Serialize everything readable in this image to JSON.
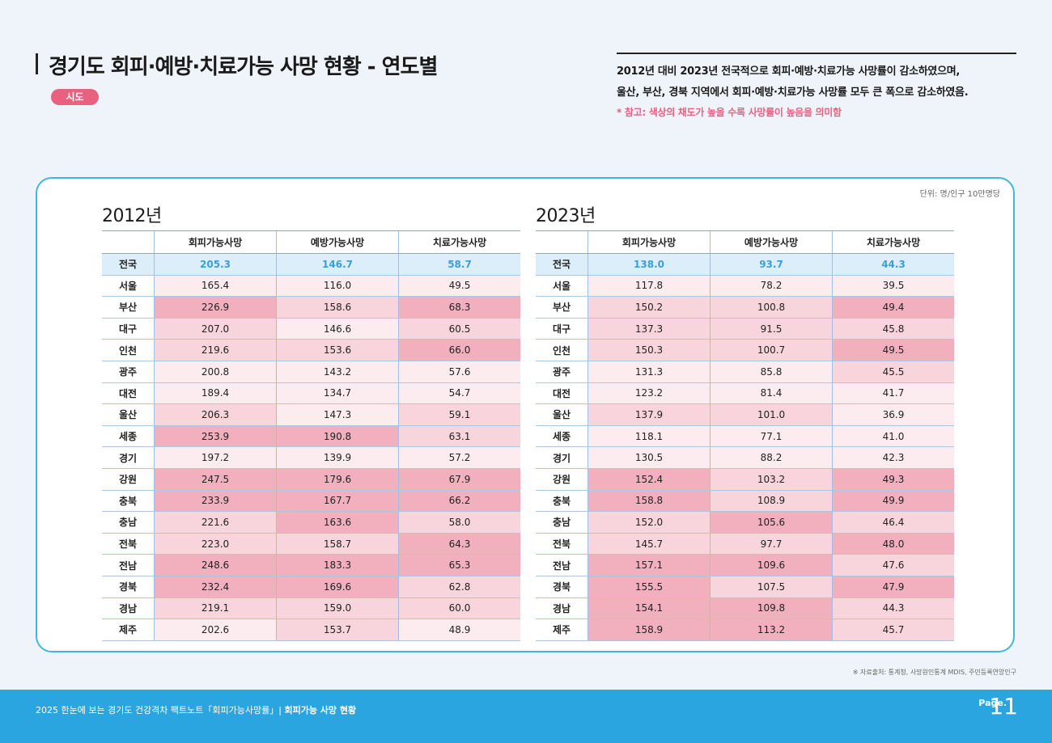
{
  "header": {
    "title": "경기도 회피·예방·치료가능 사망 현황 - 연도별",
    "badge": "시도",
    "summary_line1": "2012년 대비 2023년 전국적으로 회피·예방·치료가능 사망률이 감소하였으며,",
    "summary_line2": "울산, 부산, 경북 지역에서 회피·예방·치료가능 사망률 모두 큰 폭으로 감소하였음.",
    "note": "* 참고: 색상의 채도가 높을 수록 사망률이 높음을 의미함"
  },
  "unit": "단위: 명/인구 10만명당",
  "columns": [
    "회피가능사망",
    "예방가능사망",
    "치료가능사망"
  ],
  "tables": [
    {
      "year": "2012년",
      "rows": [
        {
          "region": "전국",
          "values": [
            "205.3",
            "146.7",
            "58.7"
          ],
          "shade": [
            0,
            0,
            0
          ]
        },
        {
          "region": "서울",
          "values": [
            "165.4",
            "116.0",
            "49.5"
          ],
          "shade": [
            1,
            1,
            1
          ]
        },
        {
          "region": "부산",
          "values": [
            "226.9",
            "158.6",
            "68.3"
          ],
          "shade": [
            3,
            2,
            3
          ]
        },
        {
          "region": "대구",
          "values": [
            "207.0",
            "146.6",
            "60.5"
          ],
          "shade": [
            2,
            1,
            2
          ]
        },
        {
          "region": "인천",
          "values": [
            "219.6",
            "153.6",
            "66.0"
          ],
          "shade": [
            2,
            2,
            3
          ]
        },
        {
          "region": "광주",
          "values": [
            "200.8",
            "143.2",
            "57.6"
          ],
          "shade": [
            1,
            1,
            1
          ]
        },
        {
          "region": "대전",
          "values": [
            "189.4",
            "134.7",
            "54.7"
          ],
          "shade": [
            1,
            1,
            1
          ]
        },
        {
          "region": "울산",
          "values": [
            "206.3",
            "147.3",
            "59.1"
          ],
          "shade": [
            2,
            1,
            2
          ]
        },
        {
          "region": "세종",
          "values": [
            "253.9",
            "190.8",
            "63.1"
          ],
          "shade": [
            3,
            3,
            2
          ]
        },
        {
          "region": "경기",
          "values": [
            "197.2",
            "139.9",
            "57.2"
          ],
          "shade": [
            1,
            1,
            1
          ]
        },
        {
          "region": "강원",
          "values": [
            "247.5",
            "179.6",
            "67.9"
          ],
          "shade": [
            3,
            3,
            3
          ]
        },
        {
          "region": "충북",
          "values": [
            "233.9",
            "167.7",
            "66.2"
          ],
          "shade": [
            3,
            3,
            3
          ]
        },
        {
          "region": "충남",
          "values": [
            "221.6",
            "163.6",
            "58.0"
          ],
          "shade": [
            2,
            3,
            2
          ]
        },
        {
          "region": "전북",
          "values": [
            "223.0",
            "158.7",
            "64.3"
          ],
          "shade": [
            2,
            2,
            3
          ]
        },
        {
          "region": "전남",
          "values": [
            "248.6",
            "183.3",
            "65.3"
          ],
          "shade": [
            3,
            3,
            3
          ]
        },
        {
          "region": "경북",
          "values": [
            "232.4",
            "169.6",
            "62.8"
          ],
          "shade": [
            3,
            3,
            2
          ]
        },
        {
          "region": "경남",
          "values": [
            "219.1",
            "159.0",
            "60.0"
          ],
          "shade": [
            2,
            2,
            2
          ]
        },
        {
          "region": "제주",
          "values": [
            "202.6",
            "153.7",
            "48.9"
          ],
          "shade": [
            1,
            2,
            1
          ]
        }
      ]
    },
    {
      "year": "2023년",
      "rows": [
        {
          "region": "전국",
          "values": [
            "138.0",
            "93.7",
            "44.3"
          ],
          "shade": [
            0,
            0,
            0
          ]
        },
        {
          "region": "서울",
          "values": [
            "117.8",
            "78.2",
            "39.5"
          ],
          "shade": [
            1,
            1,
            1
          ]
        },
        {
          "region": "부산",
          "values": [
            "150.2",
            "100.8",
            "49.4"
          ],
          "shade": [
            2,
            2,
            3
          ]
        },
        {
          "region": "대구",
          "values": [
            "137.3",
            "91.5",
            "45.8"
          ],
          "shade": [
            2,
            2,
            2
          ]
        },
        {
          "region": "인천",
          "values": [
            "150.3",
            "100.7",
            "49.5"
          ],
          "shade": [
            2,
            2,
            3
          ]
        },
        {
          "region": "광주",
          "values": [
            "131.3",
            "85.8",
            "45.5"
          ],
          "shade": [
            1,
            1,
            2
          ]
        },
        {
          "region": "대전",
          "values": [
            "123.2",
            "81.4",
            "41.7"
          ],
          "shade": [
            1,
            1,
            1
          ]
        },
        {
          "region": "울산",
          "values": [
            "137.9",
            "101.0",
            "36.9"
          ],
          "shade": [
            2,
            2,
            1
          ]
        },
        {
          "region": "세종",
          "values": [
            "118.1",
            "77.1",
            "41.0"
          ],
          "shade": [
            1,
            1,
            1
          ]
        },
        {
          "region": "경기",
          "values": [
            "130.5",
            "88.2",
            "42.3"
          ],
          "shade": [
            1,
            1,
            1
          ]
        },
        {
          "region": "강원",
          "values": [
            "152.4",
            "103.2",
            "49.3"
          ],
          "shade": [
            3,
            2,
            3
          ]
        },
        {
          "region": "충북",
          "values": [
            "158.8",
            "108.9",
            "49.9"
          ],
          "shade": [
            3,
            2,
            3
          ]
        },
        {
          "region": "충남",
          "values": [
            "152.0",
            "105.6",
            "46.4"
          ],
          "shade": [
            2,
            3,
            2
          ]
        },
        {
          "region": "전북",
          "values": [
            "145.7",
            "97.7",
            "48.0"
          ],
          "shade": [
            2,
            2,
            3
          ]
        },
        {
          "region": "전남",
          "values": [
            "157.1",
            "109.6",
            "47.6"
          ],
          "shade": [
            3,
            3,
            2
          ]
        },
        {
          "region": "경북",
          "values": [
            "155.5",
            "107.5",
            "47.9"
          ],
          "shade": [
            3,
            2,
            3
          ]
        },
        {
          "region": "경남",
          "values": [
            "154.1",
            "109.8",
            "44.3"
          ],
          "shade": [
            3,
            3,
            2
          ]
        },
        {
          "region": "제주",
          "values": [
            "158.9",
            "113.2",
            "45.7"
          ],
          "shade": [
            3,
            3,
            2
          ]
        }
      ]
    }
  ],
  "source": "※ 자료출처: 통계청, 사망원인통계 MDIS, 주민등록연앙인구",
  "footer": {
    "text": "2025 한눈에 보는 경기도 건강격차 팩트노트「회피가능사망률」|",
    "section": "회피가능 사망 현황",
    "page_label": "Page.",
    "page_number": "11"
  },
  "colors": {
    "accent_pink": "#e8617f",
    "accent_blue": "#3fb8dc",
    "footer_blue": "#2ba5e0",
    "national_row": "#dceefa",
    "shade_low": "#fdecef",
    "shade_mid": "#f8d4dc",
    "shade_high": "#f2b0bf"
  }
}
